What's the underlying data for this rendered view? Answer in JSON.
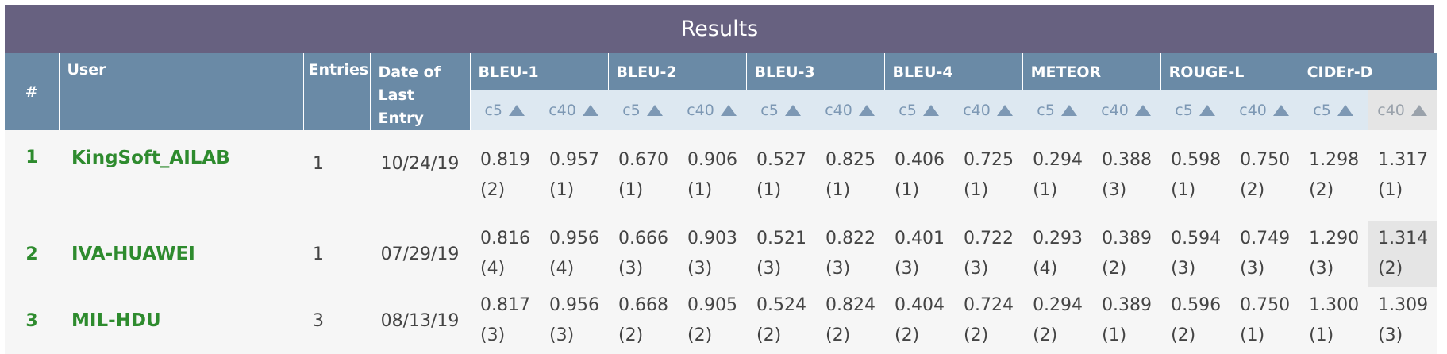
{
  "title": "Results",
  "headers": {
    "rank": "#",
    "user": "User",
    "entries": "Entries",
    "date": "Date of Last Entry"
  },
  "metrics": [
    "BLEU-1",
    "BLEU-2",
    "BLEU-3",
    "BLEU-4",
    "METEOR",
    "ROUGE-L",
    "CIDEr-D"
  ],
  "sub_labels": [
    "c5",
    "c40"
  ],
  "sorted_column": "CIDEr-D c40",
  "rows": [
    {
      "rank": "1",
      "user": "KingSoft_AILAB",
      "entries": "1",
      "date": "10/24/19",
      "scores": [
        [
          "0.819",
          "(2)"
        ],
        [
          "0.957",
          "(1)"
        ],
        [
          "0.670",
          "(1)"
        ],
        [
          "0.906",
          "(1)"
        ],
        [
          "0.527",
          "(1)"
        ],
        [
          "0.825",
          "(1)"
        ],
        [
          "0.406",
          "(1)"
        ],
        [
          "0.725",
          "(1)"
        ],
        [
          "0.294",
          "(1)"
        ],
        [
          "0.388",
          "(3)"
        ],
        [
          "0.598",
          "(1)"
        ],
        [
          "0.750",
          "(2)"
        ],
        [
          "1.298",
          "(2)"
        ],
        [
          "1.317",
          "(1)"
        ]
      ]
    },
    {
      "rank": "2",
      "user": "IVA-HUAWEI",
      "entries": "1",
      "date": "07/29/19",
      "scores": [
        [
          "0.816",
          "(4)"
        ],
        [
          "0.956",
          "(4)"
        ],
        [
          "0.666",
          "(3)"
        ],
        [
          "0.903",
          "(3)"
        ],
        [
          "0.521",
          "(3)"
        ],
        [
          "0.822",
          "(3)"
        ],
        [
          "0.401",
          "(3)"
        ],
        [
          "0.722",
          "(3)"
        ],
        [
          "0.293",
          "(4)"
        ],
        [
          "0.389",
          "(2)"
        ],
        [
          "0.594",
          "(3)"
        ],
        [
          "0.749",
          "(3)"
        ],
        [
          "1.290",
          "(3)"
        ],
        [
          "1.314",
          "(2)"
        ]
      ]
    },
    {
      "rank": "3",
      "user": "MIL-HDU",
      "entries": "3",
      "date": "08/13/19",
      "scores": [
        [
          "0.817",
          "(3)"
        ],
        [
          "0.956",
          "(3)"
        ],
        [
          "0.668",
          "(2)"
        ],
        [
          "0.905",
          "(2)"
        ],
        [
          "0.524",
          "(2)"
        ],
        [
          "0.824",
          "(2)"
        ],
        [
          "0.404",
          "(2)"
        ],
        [
          "0.724",
          "(2)"
        ],
        [
          "0.294",
          "(2)"
        ],
        [
          "0.389",
          "(1)"
        ],
        [
          "0.596",
          "(2)"
        ],
        [
          "0.750",
          "(1)"
        ],
        [
          "1.300",
          "(1)"
        ],
        [
          "1.309",
          "(3)"
        ]
      ]
    }
  ],
  "colors": {
    "title_bg": "#676180",
    "header_bg": "#6a8aa6",
    "subheader_bg": "#dde8f1",
    "sorted_bg": "#e5e5e5",
    "user_text": "#2e8b2e"
  }
}
